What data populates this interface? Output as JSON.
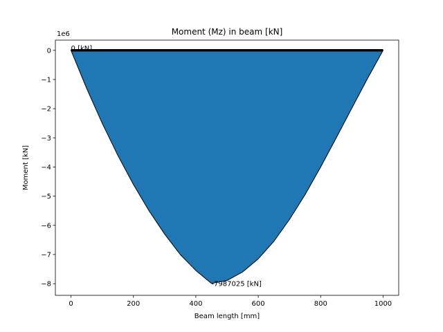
{
  "chart_data": {
    "type": "area",
    "title": "Moment (Mz) in beam [kN]",
    "xlabel": "Beam length [mm]",
    "ylabel": "Moment [kN]",
    "y_offset_label": "1e6",
    "xlim": [
      -50,
      1050
    ],
    "ylim": [
      -8.4,
      0.35
    ],
    "x_ticks": [
      0,
      200,
      400,
      600,
      800,
      1000
    ],
    "y_ticks": [
      0,
      -1,
      -2,
      -3,
      -4,
      -5,
      -6,
      -7,
      -8
    ],
    "y_tick_labels": [
      "0",
      "−1",
      "−2",
      "−3",
      "−4",
      "−5",
      "−6",
      "−7",
      "−8"
    ],
    "fill_color": "#1f77b4",
    "edge_color": "#000000",
    "beam_color": "#000000",
    "series": [
      {
        "x": [
          0,
          50,
          100,
          150,
          200,
          250,
          300,
          350,
          400,
          450,
          500,
          550,
          600,
          650,
          700,
          750,
          800,
          850,
          900,
          950,
          1000
        ],
        "values": [
          0,
          -1.3,
          -2.5,
          -3.6,
          -4.6,
          -5.5,
          -6.3,
          -7.0,
          -7.55,
          -7.99,
          -7.89,
          -7.6,
          -7.15,
          -6.55,
          -5.8,
          -4.95,
          -4.0,
          -3.0,
          -1.98,
          -0.97,
          0
        ]
      }
    ],
    "beam": {
      "x": [
        0,
        1000
      ],
      "y": [
        0,
        0
      ]
    },
    "annotations": [
      {
        "text": "0 [kN]",
        "x": 0,
        "y": 0
      },
      {
        "text": "-7987025 [kN]",
        "x": 450,
        "y": -7.987
      }
    ]
  }
}
